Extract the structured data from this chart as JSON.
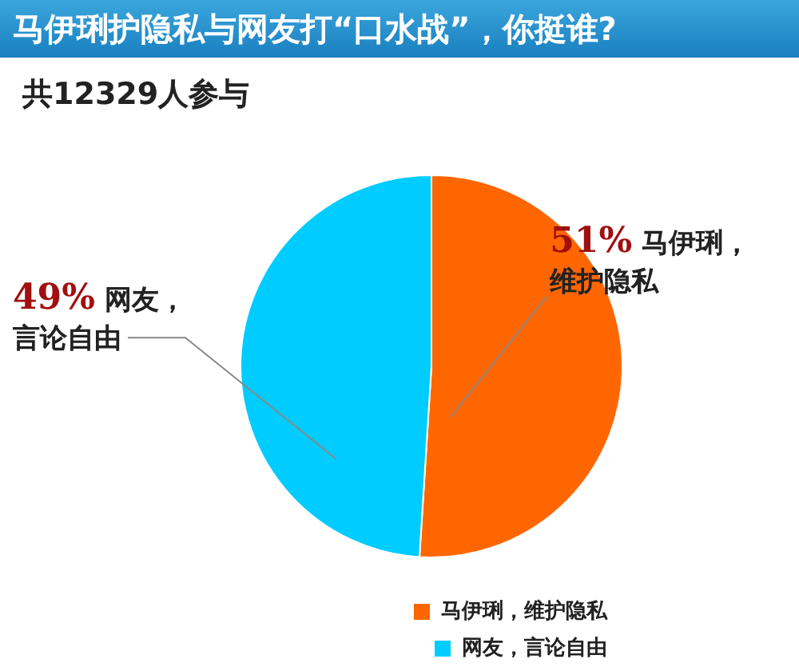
{
  "chart_data": {
    "type": "pie",
    "title": "马伊琍护隐私与网友打“口水战”，你挺谁?",
    "subtitle": "共12329人参与",
    "categories": [
      "马伊琍，维护隐私",
      "网友，言论自由"
    ],
    "values": [
      51,
      49
    ],
    "colors": [
      "#ff6600",
      "#00ccff"
    ],
    "value_labels": [
      "51%",
      "49%"
    ],
    "legend": "bottom right"
  }
}
